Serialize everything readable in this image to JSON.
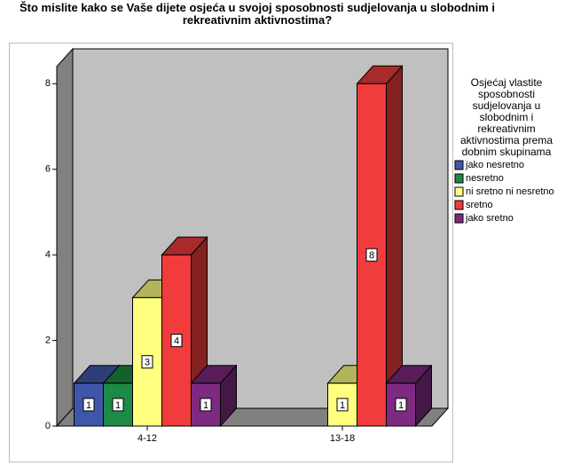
{
  "chart_data": {
    "type": "bar3d",
    "title": "Što mislite kako se Vaše dijete osjeća u svojoj sposobnosti sudjelovanja u slobodnim i rekreativnim aktivnostima?",
    "legend_title": "Osjećaj vlastite sposobnosti sudjelovanja u slobodnim i rekreativnim aktivnostima prema dobnim skupinama",
    "categories": [
      "4-12",
      "13-18"
    ],
    "series": [
      {
        "name": "jako nesretno",
        "color": "#3f57aa",
        "values": [
          1,
          null
        ]
      },
      {
        "name": "nesretno",
        "color": "#1d8a45",
        "values": [
          1,
          null
        ]
      },
      {
        "name": "ni sretno ni nesretno",
        "color": "#ffff80",
        "values": [
          3,
          1
        ]
      },
      {
        "name": "sretno",
        "color": "#f03c3c",
        "values": [
          4,
          8
        ]
      },
      {
        "name": "jako sretno",
        "color": "#7d2a80",
        "values": [
          1,
          1
        ]
      }
    ],
    "ylim": [
      0,
      8.4
    ],
    "yticks": [
      0,
      2,
      4,
      6,
      8
    ],
    "legend": "right",
    "value_labels_shown": true
  }
}
